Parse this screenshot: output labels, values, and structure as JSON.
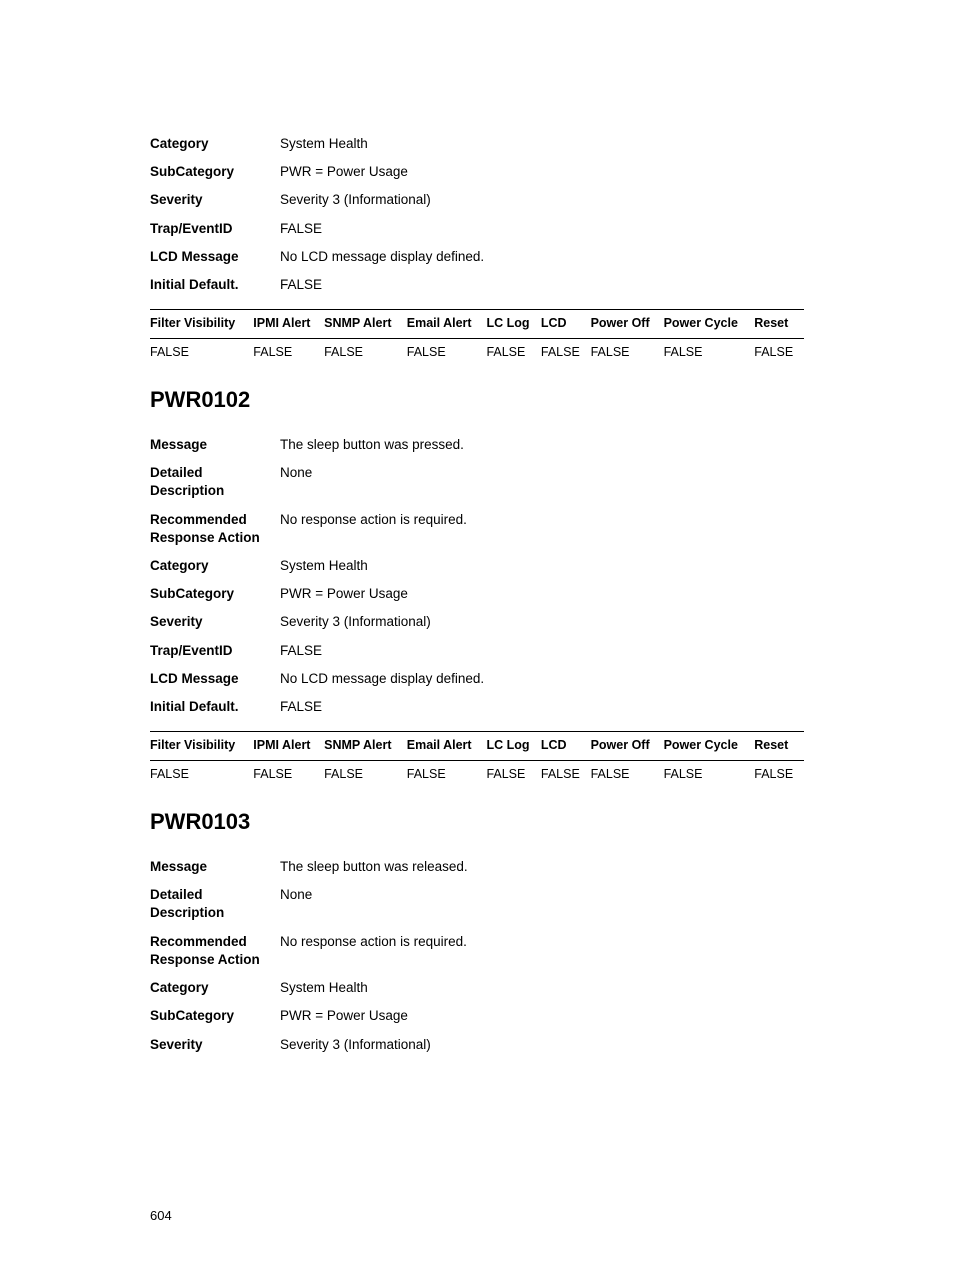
{
  "page_number": "604",
  "section0": {
    "rows": [
      {
        "label": "Category",
        "value": "System Health"
      },
      {
        "label": "SubCategory",
        "value": "PWR = Power Usage"
      },
      {
        "label": "Severity",
        "value": "Severity 3 (Informational)"
      },
      {
        "label": "Trap/EventID",
        "value": "FALSE"
      },
      {
        "label": "LCD Message",
        "value": "No LCD message display defined."
      },
      {
        "label": "Initial Default.",
        "value": "FALSE"
      }
    ],
    "filter_headers": [
      "Filter Visibility",
      "IPMI Alert",
      "SNMP Alert",
      "Email Alert",
      "LC Log",
      "LCD",
      "Power Off",
      "Power Cycle",
      "Reset"
    ],
    "filter_values": [
      "FALSE",
      "FALSE",
      "FALSE",
      "FALSE",
      "FALSE",
      "FALSE",
      "FALSE",
      "FALSE",
      "FALSE"
    ]
  },
  "section1": {
    "heading": "PWR0102",
    "rows": [
      {
        "label": "Message",
        "value": "The sleep button was pressed."
      },
      {
        "label": "Detailed Description",
        "value": "None"
      },
      {
        "label": "Recommended Response Action",
        "value": "No response action is required."
      },
      {
        "label": "Category",
        "value": "System Health"
      },
      {
        "label": "SubCategory",
        "value": "PWR = Power Usage"
      },
      {
        "label": "Severity",
        "value": "Severity 3 (Informational)"
      },
      {
        "label": "Trap/EventID",
        "value": "FALSE"
      },
      {
        "label": "LCD Message",
        "value": "No LCD message display defined."
      },
      {
        "label": "Initial Default.",
        "value": "FALSE"
      }
    ],
    "filter_headers": [
      "Filter Visibility",
      "IPMI Alert",
      "SNMP Alert",
      "Email Alert",
      "LC Log",
      "LCD",
      "Power Off",
      "Power Cycle",
      "Reset"
    ],
    "filter_values": [
      "FALSE",
      "FALSE",
      "FALSE",
      "FALSE",
      "FALSE",
      "FALSE",
      "FALSE",
      "FALSE",
      "FALSE"
    ]
  },
  "section2": {
    "heading": "PWR0103",
    "rows": [
      {
        "label": "Message",
        "value": "The sleep button was released."
      },
      {
        "label": "Detailed Description",
        "value": "None"
      },
      {
        "label": "Recommended Response Action",
        "value": "No response action is required."
      },
      {
        "label": "Category",
        "value": "System Health"
      },
      {
        "label": "SubCategory",
        "value": "PWR = Power Usage"
      },
      {
        "label": "Severity",
        "value": "Severity 3 (Informational)"
      }
    ]
  }
}
